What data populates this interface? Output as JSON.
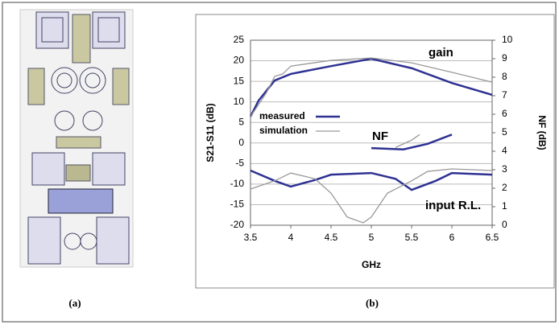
{
  "captions": [
    "(a)",
    "(b)"
  ],
  "chart_data": {
    "type": "line",
    "xlabel": "GHz",
    "ylabel": "S21-S11 (dB)",
    "y2label": "NF (dB)",
    "xlim": [
      3.5,
      6.5
    ],
    "xticks": [
      3.5,
      4,
      4.5,
      5,
      5.5,
      6,
      6.5
    ],
    "ylim": [
      -20,
      25
    ],
    "yticks": [
      -20,
      -15,
      -10,
      -5,
      0,
      5,
      10,
      15,
      20,
      25
    ],
    "y2lim": [
      0,
      10
    ],
    "y2ticks": [
      0,
      1,
      2,
      3,
      4,
      5,
      6,
      7,
      8,
      9,
      10
    ],
    "grid": true,
    "annotations": [
      "gain",
      "NF",
      "input R.L."
    ],
    "series": [
      {
        "name": "measured",
        "color": "#2e3192",
        "x": [
          3.5,
          3.6,
          3.8,
          4.0,
          4.5,
          5.0,
          5.5,
          6.0,
          6.5
        ],
        "values": [
          6.4,
          10.3,
          15.2,
          16.8,
          18.7,
          20.5,
          18.2,
          14.6,
          11.7
        ]
      },
      {
        "name": "simulation",
        "color": "#999999",
        "x": [
          3.5,
          3.7,
          3.8,
          3.9,
          4.0,
          4.5,
          5.0,
          5.5,
          6.0,
          6.5
        ],
        "values": [
          6.4,
          12.3,
          16.2,
          16.8,
          18.7,
          20.1,
          20.7,
          19.5,
          17.2,
          14.8
        ]
      },
      {
        "color": "#2e3192",
        "axis": "y2",
        "x": [
          5.0,
          5.4,
          5.7,
          6.0
        ],
        "values": [
          4.17,
          4.1,
          4.4,
          4.9
        ]
      },
      {
        "color": "#999999",
        "axis": "y2",
        "x": [
          5.3,
          5.5,
          5.6
        ],
        "values": [
          4.2,
          4.6,
          4.9
        ]
      },
      {
        "color": "#2e3192",
        "x": [
          3.5,
          3.8,
          4.0,
          4.3,
          4.5,
          5.0,
          5.3,
          5.5,
          5.8,
          6.0,
          6.5
        ],
        "values": [
          -6.7,
          -9.2,
          -10.6,
          -9,
          -7.7,
          -7.3,
          -8.7,
          -11.4,
          -9.2,
          -7.3,
          -7.7
        ]
      },
      {
        "color": "#999999",
        "x": [
          3.5,
          3.8,
          4.0,
          4.3,
          4.5,
          4.7,
          4.9,
          5.0,
          5.2,
          5.5,
          5.7,
          6.0,
          6.5
        ],
        "values": [
          -11.2,
          -9.2,
          -7.3,
          -8.7,
          -12.2,
          -18,
          -19.4,
          -18,
          -12.2,
          -9.2,
          -6.9,
          -6.3,
          -6.7
        ]
      }
    ]
  }
}
